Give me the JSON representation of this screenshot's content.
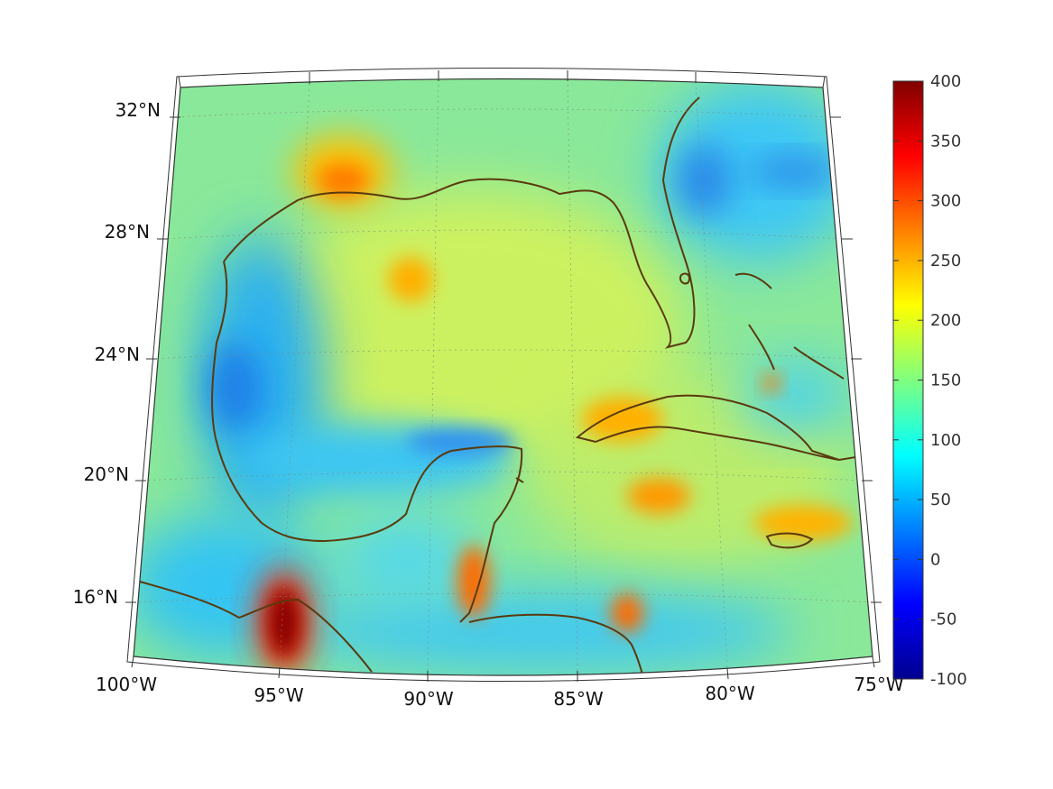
{
  "map": {
    "projection": "conic (Gulf of Mexico / Caribbean)",
    "lon_range": [
      -100,
      -75
    ],
    "lat_range": [
      14,
      33
    ],
    "longitude_ticks": [
      "100°W",
      "95°W",
      "90°W",
      "85°W",
      "80°W",
      "75°W"
    ],
    "latitude_ticks": [
      "32°N",
      "28°N",
      "24°N",
      "20°N",
      "16°N"
    ],
    "coastline_color": "#5a3a0e",
    "grid_style": "dotted"
  },
  "colorbar": {
    "colormap": "jet",
    "min": -100,
    "max": 400,
    "ticks": [
      "400",
      "350",
      "300",
      "250",
      "200",
      "150",
      "100",
      "50",
      "0",
      "-50",
      "-100"
    ]
  },
  "colors": {
    "background": "#ffffff",
    "field_base": "#8ae89a"
  }
}
